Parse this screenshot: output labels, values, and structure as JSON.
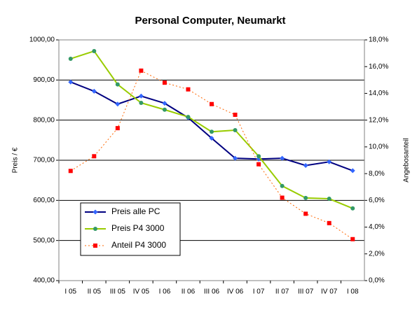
{
  "chart_data": {
    "type": "line",
    "title": "Personal Computer, Neumarkt",
    "y_label": "Preis / €",
    "y2_label": "Angebosanteil",
    "categories": [
      "I 05",
      "II 05",
      "III 05",
      "IV 05",
      "I 06",
      "II 06",
      "III 06",
      "IV 06",
      "I 07",
      "II 07",
      "III 07",
      "IV 07",
      "I 08"
    ],
    "ylim": [
      400,
      1000
    ],
    "yticks": [
      {
        "value": 400,
        "label": "400,00"
      },
      {
        "value": 500,
        "label": "500,00"
      },
      {
        "value": 600,
        "label": "600,00"
      },
      {
        "value": 700,
        "label": "700,00"
      },
      {
        "value": 800,
        "label": "800,00"
      },
      {
        "value": 900,
        "label": "900,00"
      },
      {
        "value": 1000,
        "label": "1000,00"
      }
    ],
    "y2lim": [
      0,
      18
    ],
    "y2ticks": [
      {
        "value": 0,
        "label": "0,0%"
      },
      {
        "value": 2,
        "label": "2,0%"
      },
      {
        "value": 4,
        "label": "4,0%"
      },
      {
        "value": 6,
        "label": "6,0%"
      },
      {
        "value": 8,
        "label": "8,0%"
      },
      {
        "value": 10,
        "label": "10,0%"
      },
      {
        "value": 12,
        "label": "12,0%"
      },
      {
        "value": 14,
        "label": "14,0%"
      },
      {
        "value": 16,
        "label": "16,0%"
      },
      {
        "value": 18,
        "label": "18,0%"
      }
    ],
    "grid": true,
    "series": [
      {
        "name": "Preis alle PC",
        "color": "#000080",
        "marker": "diamond",
        "marker_color": "#3366ff",
        "dashed": false,
        "values": [
          895,
          872,
          840,
          860,
          842,
          806,
          755,
          705,
          703,
          705,
          687,
          696,
          674
        ]
      },
      {
        "name": "Preis P4 3000",
        "color": "#99cc00",
        "marker": "circle",
        "marker_color": "#339966",
        "dashed": false,
        "values": [
          953,
          972,
          889,
          843,
          826,
          808,
          771,
          775,
          710,
          636,
          606,
          604,
          580
        ]
      },
      {
        "name": "Anteil P4 3000",
        "color": "#ff6600",
        "marker": "square",
        "marker_color": "#ff0000",
        "dashed": true,
        "axis": "y2",
        "values": [
          8.2,
          9.3,
          11.4,
          15.7,
          14.8,
          14.3,
          13.2,
          12.4,
          8.7,
          6.2,
          5.0,
          4.3,
          3.1
        ]
      }
    ]
  }
}
